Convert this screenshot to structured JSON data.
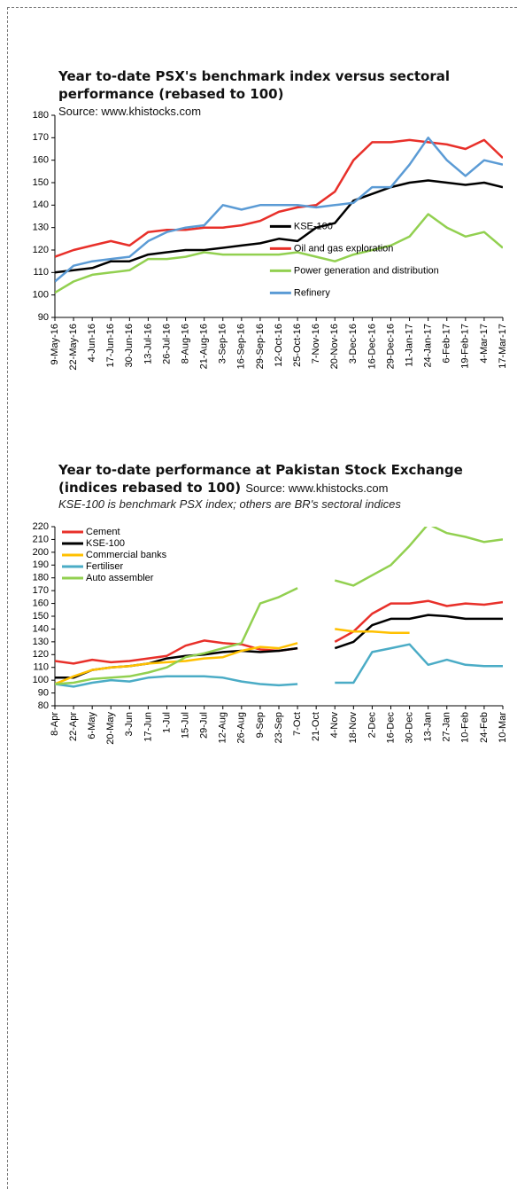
{
  "chart_data": [
    {
      "type": "line",
      "title": "Year to-date PSX's benchmark index versus sectoral  performance (rebased to 100)",
      "source": "Source: www.khistocks.com",
      "categories": [
        "9-May-16",
        "22-May-16",
        "4-Jun-16",
        "17-Jun-16",
        "30-Jun-16",
        "13-Jul-16",
        "26-Jul-16",
        "8-Aug-16",
        "21-Aug-16",
        "3-Sep-16",
        "16-Sep-16",
        "29-Sep-16",
        "12-Oct-16",
        "25-Oct-16",
        "7-Nov-16",
        "20-Nov-16",
        "3-Dec-16",
        "16-Dec-16",
        "29-Dec-16",
        "11-Jan-17",
        "24-Jan-17",
        "6-Feb-17",
        "19-Feb-17",
        "4-Mar-17",
        "17-Mar-17"
      ],
      "series": [
        {
          "name": "KSE-100",
          "color": "#000000",
          "values": [
            110,
            111,
            112,
            115,
            115,
            118,
            119,
            120,
            120,
            121,
            122,
            123,
            125,
            124,
            130,
            132,
            142,
            145,
            148,
            150,
            151,
            150,
            149,
            150,
            148
          ]
        },
        {
          "name": "Oil and gas exploration",
          "color": "#e8302a",
          "values": [
            117,
            120,
            122,
            124,
            122,
            128,
            129,
            129,
            130,
            130,
            131,
            133,
            137,
            139,
            140,
            146,
            160,
            168,
            168,
            169,
            168,
            167,
            165,
            169,
            161
          ]
        },
        {
          "name": "Power generation and distribution",
          "color": "#92d050",
          "values": [
            101,
            106,
            109,
            110,
            111,
            116,
            116,
            117,
            119,
            118,
            118,
            118,
            118,
            119,
            117,
            115,
            118,
            120,
            122,
            126,
            136,
            130,
            126,
            128,
            121
          ]
        },
        {
          "name": "Refinery",
          "color": "#5b9bd5",
          "values": [
            106,
            113,
            115,
            116,
            117,
            124,
            128,
            130,
            131,
            140,
            138,
            140,
            140,
            140,
            139,
            140,
            141,
            148,
            148,
            158,
            170,
            160,
            153,
            160,
            158
          ]
        }
      ],
      "ylim": [
        90,
        180
      ],
      "yticks": [
        90,
        100,
        110,
        120,
        130,
        140,
        150,
        160,
        170,
        180
      ],
      "legend": "center"
    },
    {
      "type": "line",
      "title": "Year to-date performance at Pakistan Stock Exchange (indices rebased to 100)",
      "source": "Source: www.khistocks.com",
      "subtitle": "KSE-100 is benchmark PSX index; others are BR's sectoral indices",
      "categories": [
        "8-Apr",
        "22-Apr",
        "6-May",
        "20-May",
        "3-Jun",
        "17-Jun",
        "1-Jul",
        "15-Jul",
        "29-Jul",
        "12-Aug",
        "26-Aug",
        "9-Sep",
        "23-Sep",
        "7-Oct",
        "21-Oct",
        "4-Nov",
        "18-Nov",
        "2-Dec",
        "16-Dec",
        "30-Dec",
        "13-Jan",
        "27-Jan",
        "10-Feb",
        "24-Feb",
        "10-Mar"
      ],
      "series": [
        {
          "name": "Cement",
          "color": "#e8302a",
          "values": [
            115,
            113,
            116,
            114,
            115,
            117,
            119,
            127,
            131,
            129,
            128,
            124,
            123,
            125,
            null,
            130,
            138,
            152,
            160,
            160,
            162,
            158,
            160,
            159,
            161
          ]
        },
        {
          "name": "KSE-100",
          "color": "#000000",
          "values": [
            102,
            102,
            108,
            110,
            111,
            113,
            117,
            119,
            120,
            122,
            123,
            122,
            123,
            125,
            null,
            125,
            130,
            143,
            148,
            148,
            151,
            150,
            148,
            148,
            148
          ]
        },
        {
          "name": "Commercial banks",
          "color": "#ffc000",
          "values": [
            97,
            103,
            108,
            110,
            111,
            113,
            114,
            115,
            117,
            118,
            123,
            126,
            125,
            129,
            null,
            140,
            138,
            138,
            137,
            137,
            null,
            null,
            null,
            null,
            null
          ]
        },
        {
          "name": "Fertiliser",
          "color": "#4bacc6",
          "values": [
            97,
            95,
            98,
            100,
            99,
            102,
            103,
            103,
            103,
            102,
            99,
            97,
            96,
            97,
            null,
            98,
            98,
            122,
            125,
            128,
            112,
            116,
            112,
            111,
            111
          ]
        },
        {
          "name": "Auto assembler",
          "color": "#92d050",
          "values": [
            97,
            98,
            101,
            102,
            103,
            106,
            110,
            118,
            121,
            125,
            129,
            160,
            165,
            172,
            null,
            178,
            174,
            182,
            190,
            205,
            222,
            215,
            212,
            208,
            210
          ]
        }
      ],
      "ylim": [
        80,
        220
      ],
      "yticks": [
        80,
        90,
        100,
        110,
        120,
        130,
        140,
        150,
        160,
        170,
        180,
        190,
        200,
        210,
        220
      ],
      "legend": "upper left"
    }
  ]
}
